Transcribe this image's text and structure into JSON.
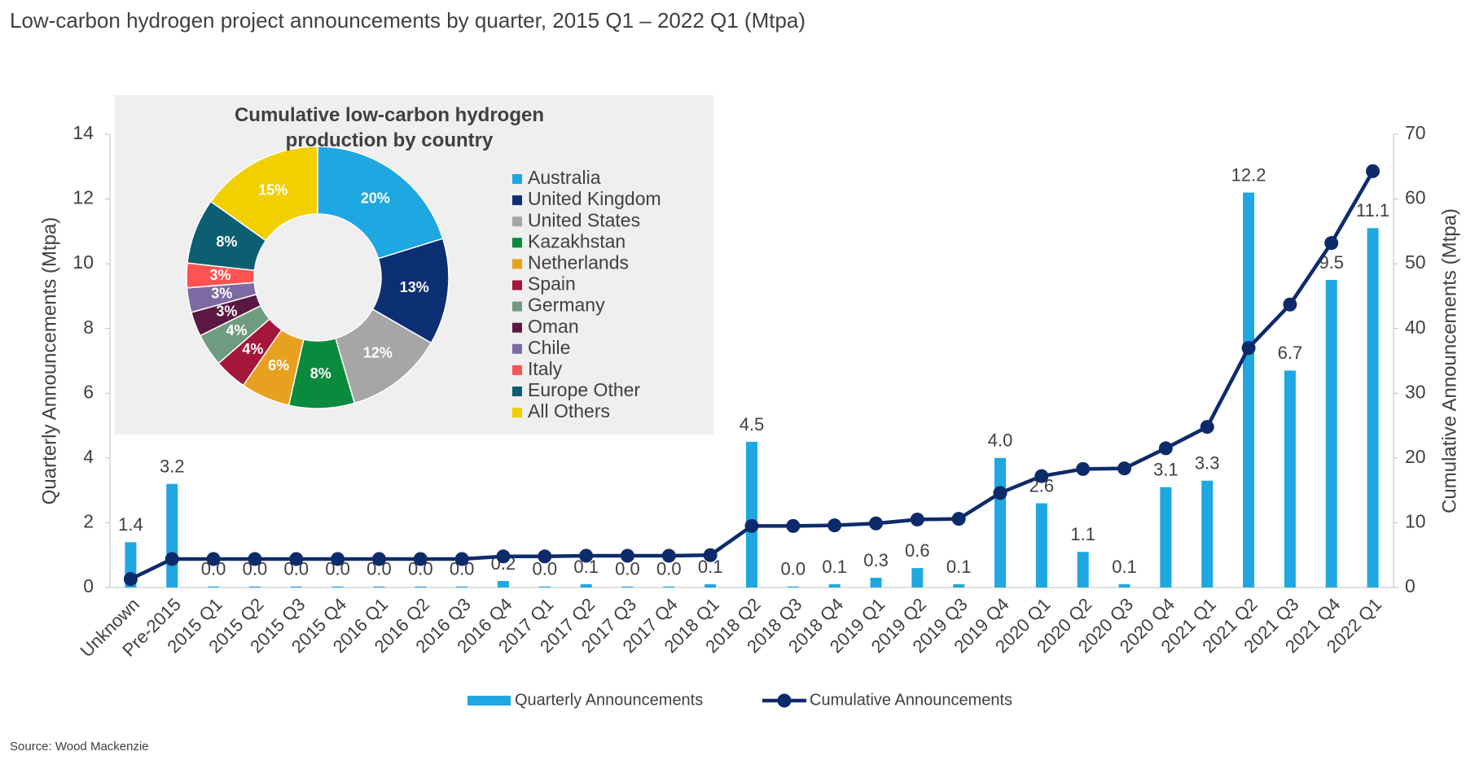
{
  "chart_data": [
    {
      "type": "combo",
      "title": "Low-carbon hydrogen project announcements by quarter, 2015 Q1 – 2022 Q1 (Mtpa)",
      "ylabel": "Quarterly Announcements (Mtpa)",
      "y2label": "Cumulative Announcements (Mtpa)",
      "categories": [
        "Unknown",
        "Pre-2015",
        "2015 Q1",
        "2015 Q2",
        "2015 Q3",
        "2015 Q4",
        "2016 Q1",
        "2016 Q2",
        "2016 Q3",
        "2016 Q4",
        "2017 Q1",
        "2017 Q2",
        "2017 Q3",
        "2017 Q4",
        "2018 Q1",
        "2018 Q2",
        "2018 Q3",
        "2018 Q4",
        "2019 Q1",
        "2019 Q2",
        "2019 Q3",
        "2019 Q4",
        "2020 Q1",
        "2020 Q2",
        "2020 Q3",
        "2020 Q4",
        "2021 Q1",
        "2021 Q2",
        "2021 Q3",
        "2021 Q4",
        "2022 Q1"
      ],
      "series": [
        {
          "name": "Quarterly Announcements",
          "type": "bar",
          "color": "#1ea7e1",
          "values": [
            1.4,
            3.2,
            0.03,
            0.03,
            0.03,
            0.03,
            0.03,
            0.03,
            0.03,
            0.2,
            0.03,
            0.1,
            0.03,
            0.03,
            0.1,
            4.5,
            0.03,
            0.1,
            0.3,
            0.6,
            0.1,
            4.0,
            2.6,
            1.1,
            0.1,
            3.1,
            3.3,
            12.2,
            6.7,
            9.5,
            11.1
          ],
          "value_labels": [
            "1.4",
            "3.2",
            "0.0",
            "0.0",
            "0.0",
            "0.0",
            "0.0",
            "0.0",
            "0.0",
            "0.2",
            "0.0",
            "0.1",
            "0.0",
            "0.0",
            "0.1",
            "4.5",
            "0.0",
            "0.1",
            "0.3",
            "0.6",
            "0.1",
            "4.0",
            "2.6",
            "1.1",
            "0.1",
            "3.1",
            "3.3",
            "12.2",
            "6.7",
            "9.5",
            "11.1"
          ]
        },
        {
          "name": "Cumulative Announcements",
          "type": "line",
          "axis": "y2",
          "color": "#0d2b6b",
          "values": [
            1.3,
            4.4,
            4.4,
            4.4,
            4.4,
            4.4,
            4.4,
            4.4,
            4.4,
            4.8,
            4.8,
            4.9,
            4.9,
            4.9,
            5.0,
            9.5,
            9.5,
            9.6,
            9.9,
            10.5,
            10.6,
            14.6,
            17.2,
            18.3,
            18.4,
            21.5,
            24.8,
            37.0,
            43.7,
            53.2,
            64.3
          ]
        }
      ],
      "ylim": [
        0,
        14
      ],
      "yticks": [
        0,
        2,
        4,
        6,
        8,
        10,
        12,
        14
      ],
      "y2lim": [
        0,
        70
      ],
      "y2ticks": [
        0,
        10,
        20,
        30,
        40,
        50,
        60,
        70
      ],
      "grid": false,
      "legend": "bottom"
    },
    {
      "type": "pie",
      "title": "Cumulative low-carbon hydrogen production by country",
      "categories": [
        "Australia",
        "United Kingdom",
        "United States",
        "Kazakhstan",
        "Netherlands",
        "Spain",
        "Germany",
        "Oman",
        "Chile",
        "Italy",
        "Europe Other",
        "All Others"
      ],
      "values": [
        20,
        13,
        12,
        8,
        6,
        4,
        4,
        3,
        3,
        3,
        8,
        15
      ],
      "value_labels": [
        "20%",
        "13%",
        "12%",
        "8%",
        "6%",
        "4%",
        "4%",
        "3%",
        "3%",
        "3%",
        "8%",
        "15%"
      ],
      "colors": [
        "#1ea7e1",
        "#0b2f72",
        "#a6a6a6",
        "#0a8a3c",
        "#e8a020",
        "#a5173a",
        "#6f9c80",
        "#5a1842",
        "#7d6aa2",
        "#ff5252",
        "#0b5f70",
        "#f2cf00"
      ],
      "hole": true,
      "legend": "right"
    }
  ],
  "source": "Source: Wood Mackenzie"
}
